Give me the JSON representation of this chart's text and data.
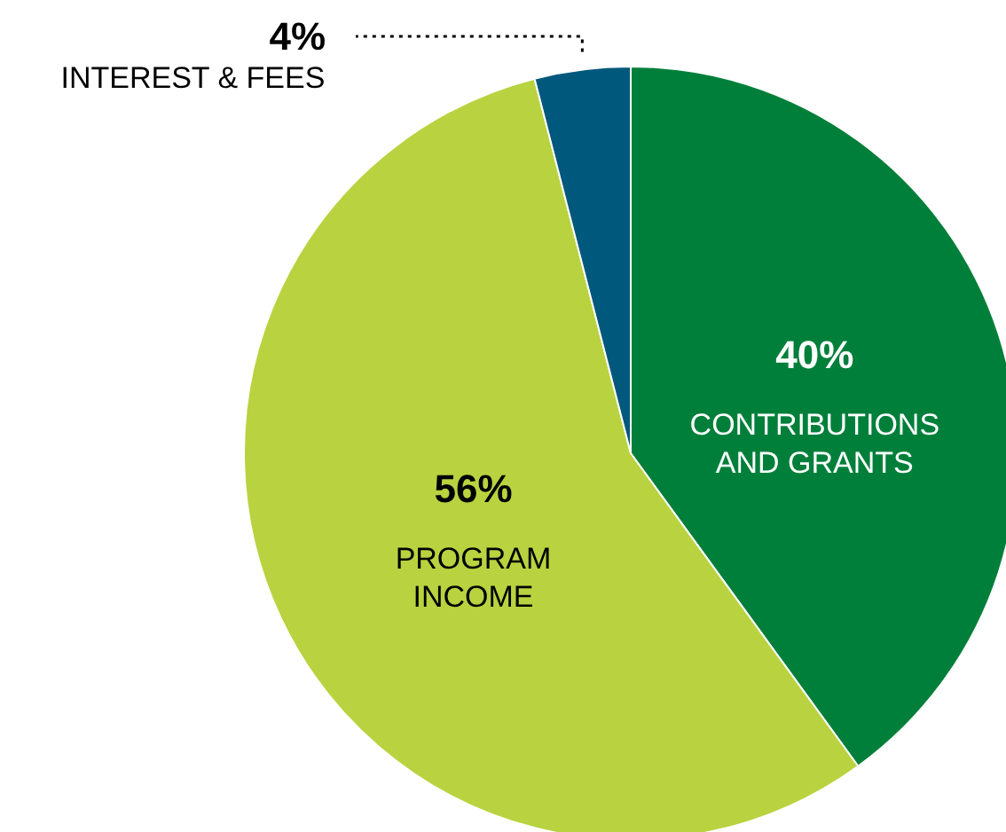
{
  "chart_data": {
    "type": "pie",
    "categories": [
      "CONTRIBUTIONS\nAND GRANTS",
      "PROGRAM\nINCOME",
      "INTEREST & FEES"
    ],
    "values": [
      40,
      56,
      4
    ],
    "colors": [
      "#007f3a",
      "#b8d33f",
      "#00587c"
    ],
    "value_labels": [
      "40%",
      "56%",
      "4%"
    ]
  }
}
